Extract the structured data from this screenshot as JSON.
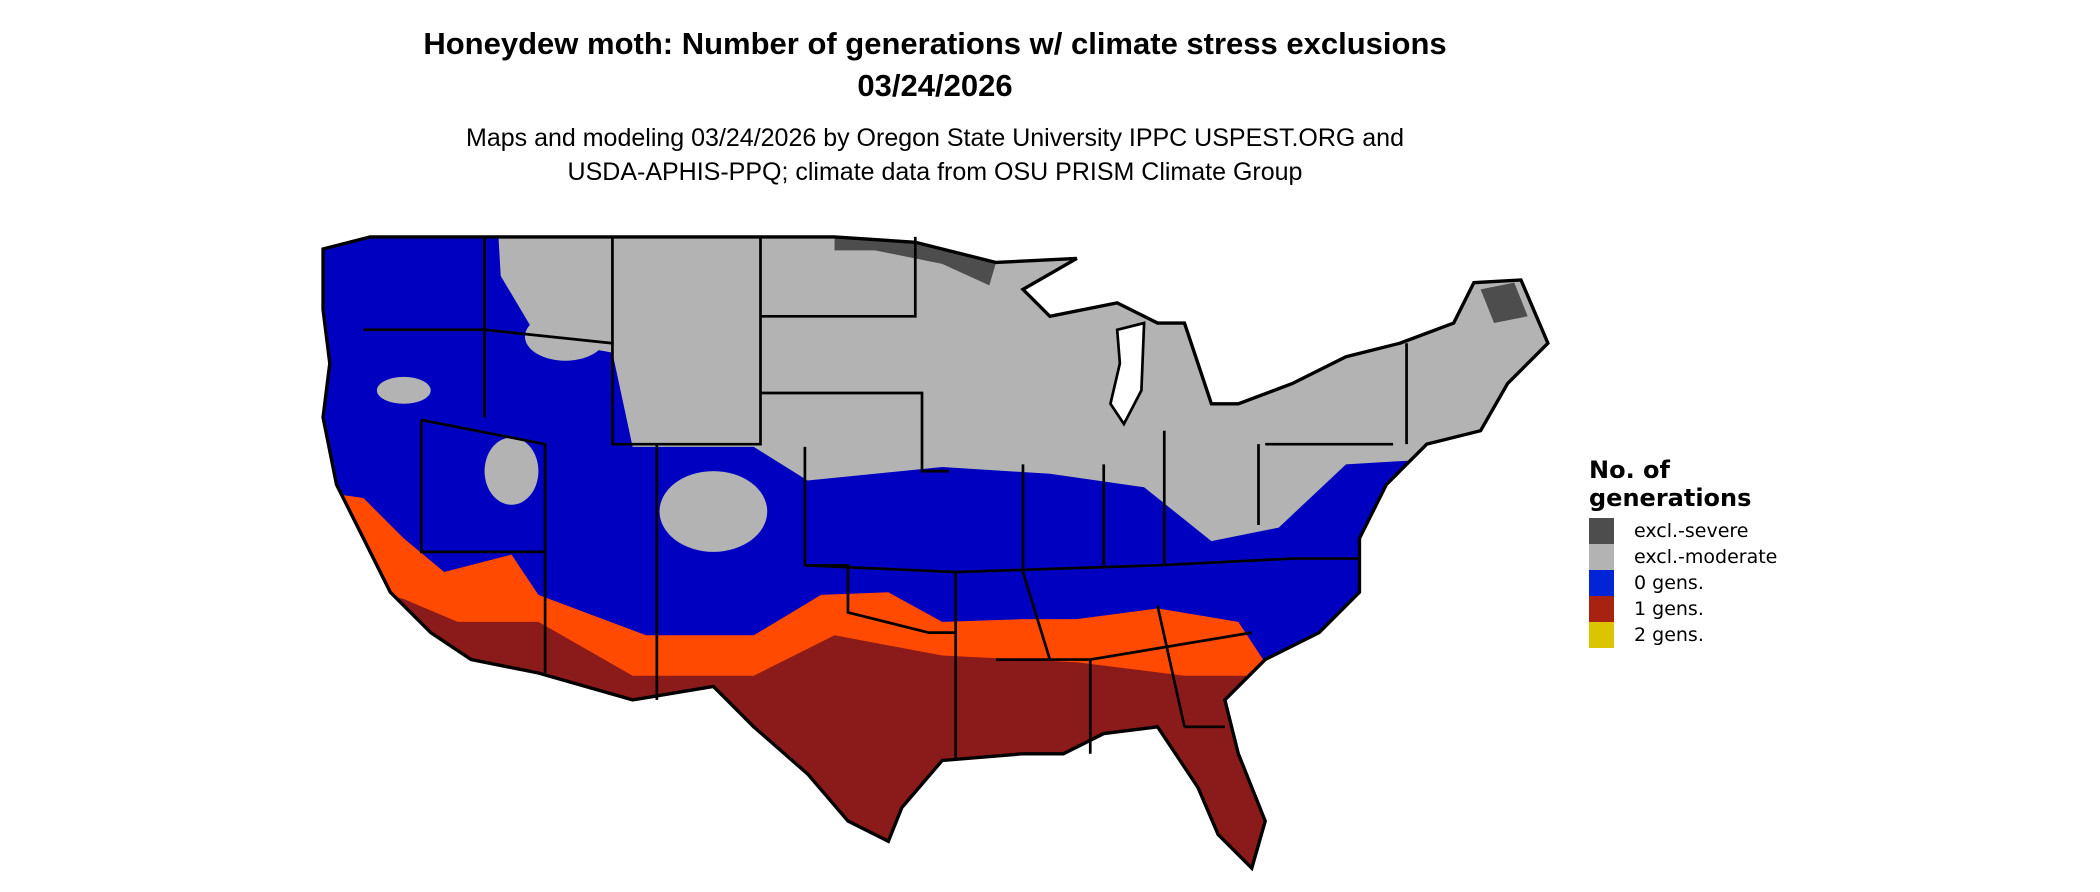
{
  "title": {
    "line1": "Honeydew moth: Number of generations w/ climate stress exclusions",
    "line2": "03/24/2026"
  },
  "subtitle": {
    "line1": "Maps and modeling 03/24/2026 by Oregon State University IPPC USPEST.ORG and",
    "line2": "USDA-APHIS-PPQ; climate data from OSU PRISM Climate Group"
  },
  "legend": {
    "title_line1": "No. of",
    "title_line2": "generations",
    "items": [
      {
        "label": "excl.-severe",
        "color": "#4d4d4d"
      },
      {
        "label": "excl.-moderate",
        "color": "#b3b3b3"
      },
      {
        "label": "0 gens.",
        "color": "#0024d6"
      },
      {
        "label": "1 gens.",
        "color": "#a82212"
      },
      {
        "label": "2 gens.",
        "color": "#dcc400"
      }
    ]
  },
  "map_colors": {
    "zero_gens": "#0000c0",
    "moderate": "#b3b3b3",
    "severe": "#4d4d4d",
    "one_gen_partial": "#ff4a00",
    "one_gen": "#8b1a1a",
    "two_gens": "#e6e600",
    "border": "#000000"
  }
}
